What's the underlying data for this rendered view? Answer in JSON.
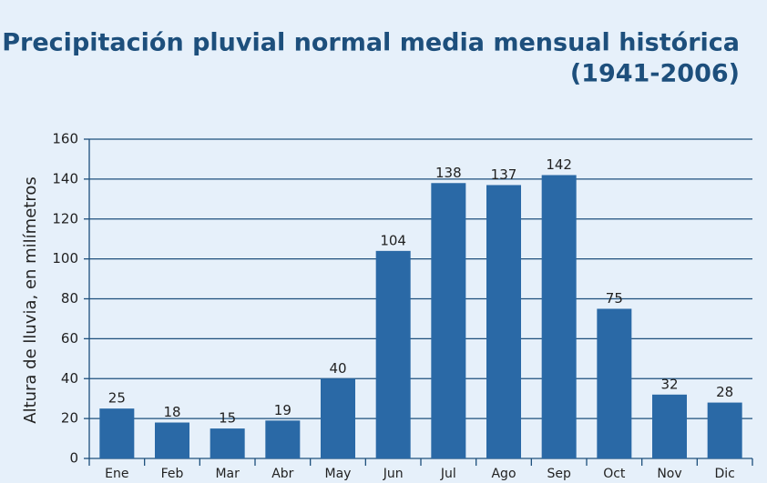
{
  "chart_data": {
    "type": "bar",
    "title": "Precipitación pluvial normal media mensual histórica",
    "subtitle": "(1941-2006)",
    "y_label": "Altura de lluvia, en milímetros",
    "categories": [
      "Ene",
      "Feb",
      "Mar",
      "Abr",
      "May",
      "Jun",
      "Jul",
      "Ago",
      "Sep",
      "Oct",
      "Nov",
      "Dic"
    ],
    "values": [
      25,
      18,
      15,
      19,
      40,
      104,
      138,
      137,
      142,
      75,
      32,
      28
    ],
    "color": "#2a69a6",
    "ylim": [
      0,
      160
    ],
    "yticks": [
      0,
      20,
      40,
      60,
      80,
      100,
      120,
      140,
      160
    ],
    "grid": true
  }
}
